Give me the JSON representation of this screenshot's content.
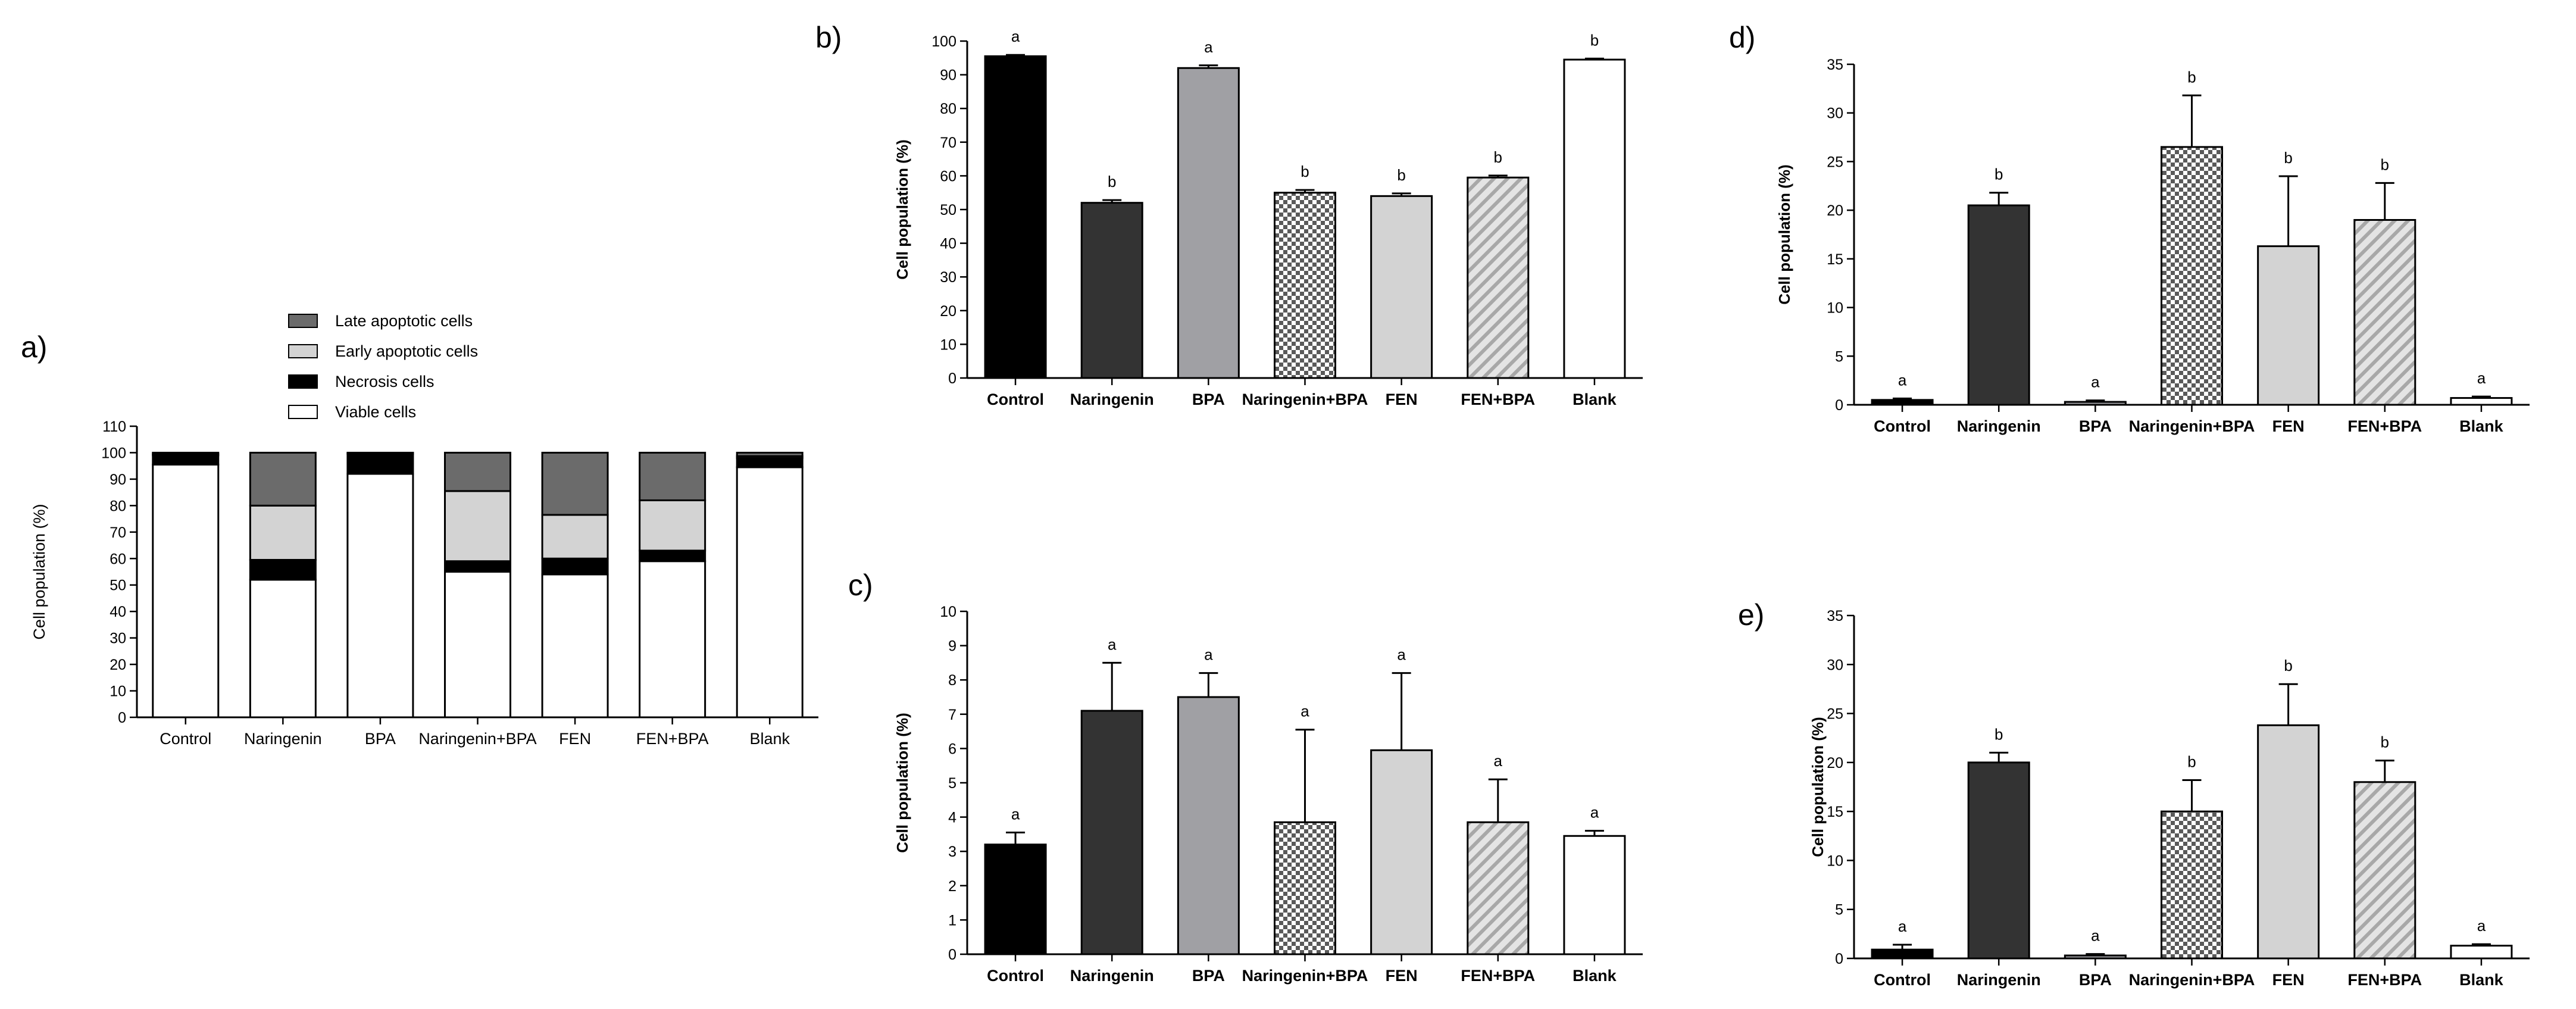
{
  "chart_data": [
    {
      "panel": "a)",
      "type": "bar",
      "stacked": true,
      "categories": [
        "Control",
        "Naringenin",
        "BPA",
        "Naringenin+BPA",
        "FEN",
        "FEN+BPA",
        "Blank"
      ],
      "series": [
        {
          "name": "Viable cells",
          "color": "#ffffff",
          "values": [
            95.5,
            52,
            92,
            55,
            54,
            59,
            94.5
          ]
        },
        {
          "name": "Necrosis cells",
          "color": "#000000",
          "values": [
            3.5,
            7.5,
            7.5,
            4,
            6,
            4,
            3.5
          ]
        },
        {
          "name": "Early apoptotic cells",
          "color": "#d3d3d3",
          "values": [
            0.5,
            20.5,
            0.3,
            26.5,
            16.5,
            19,
            0.7
          ]
        },
        {
          "name": "Late apoptotic cells",
          "color": "#6b6b6b",
          "values": [
            0.5,
            20,
            0.2,
            14.5,
            23.5,
            18,
            1.3
          ]
        }
      ],
      "legend_order": [
        "Late apoptotic cells",
        "Early apoptotic cells",
        "Necrosis cells",
        "Viable cells"
      ],
      "ylabel": "Cell population (%)",
      "ylim": [
        0,
        110
      ],
      "yticks": [
        0,
        10,
        20,
        30,
        40,
        50,
        60,
        70,
        80,
        90,
        100,
        110
      ]
    },
    {
      "panel": "b)",
      "type": "bar",
      "categories": [
        "Control",
        "Naringenin",
        "BPA",
        "Naringenin+BPA",
        "FEN",
        "FEN+BPA",
        "Blank"
      ],
      "values": [
        95.5,
        52,
        92,
        55,
        54,
        59.5,
        94.5
      ],
      "errors": [
        0.4,
        0.8,
        0.8,
        0.8,
        0.8,
        0.6,
        0.3
      ],
      "significance": [
        "a",
        "b",
        "a",
        "b",
        "b",
        "b",
        "b"
      ],
      "ylabel": "Cell population (%)",
      "ylim": [
        0,
        100
      ],
      "yticks": [
        0,
        10,
        20,
        30,
        40,
        50,
        60,
        70,
        80,
        90,
        100
      ]
    },
    {
      "panel": "c)",
      "type": "bar",
      "categories": [
        "Control",
        "Naringenin",
        "BPA",
        "Naringenin+BPA",
        "FEN",
        "FEN+BPA",
        "Blank"
      ],
      "values": [
        3.2,
        7.1,
        7.5,
        3.85,
        5.95,
        3.85,
        3.45
      ],
      "errors": [
        0.35,
        1.4,
        0.7,
        2.7,
        2.25,
        1.25,
        0.15
      ],
      "significance": [
        "a",
        "a",
        "a",
        "a",
        "a",
        "a",
        "a"
      ],
      "ylabel": "Cell population (%)",
      "ylim": [
        0,
        10
      ],
      "yticks": [
        0,
        1,
        2,
        3,
        4,
        5,
        6,
        7,
        8,
        9,
        10
      ]
    },
    {
      "panel": "d)",
      "type": "bar",
      "categories": [
        "Control",
        "Naringenin",
        "BPA",
        "Naringenin+BPA",
        "FEN",
        "FEN+BPA",
        "Blank"
      ],
      "values": [
        0.5,
        20.5,
        0.3,
        26.5,
        16.3,
        19,
        0.7
      ],
      "errors": [
        0.15,
        1.3,
        0.15,
        5.3,
        7.2,
        3.8,
        0.15
      ],
      "significance": [
        "a",
        "b",
        "a",
        "b",
        "b",
        "b",
        "a"
      ],
      "ylabel": "Cell population (%)",
      "ylim": [
        0,
        35
      ],
      "yticks": [
        0,
        5,
        10,
        15,
        20,
        25,
        30,
        35
      ]
    },
    {
      "panel": "e)",
      "type": "bar",
      "categories": [
        "Control",
        "Naringenin",
        "BPA",
        "Naringenin+BPA",
        "FEN",
        "FEN+BPA",
        "Blank"
      ],
      "values": [
        0.9,
        20,
        0.3,
        15,
        23.8,
        18,
        1.3
      ],
      "errors": [
        0.5,
        1.0,
        0.15,
        3.2,
        4.2,
        2.2,
        0.15
      ],
      "significance": [
        "a",
        "b",
        "a",
        "b",
        "b",
        "b",
        "a"
      ],
      "ylabel": "Cell population (%)",
      "ylim": [
        0,
        35
      ],
      "yticks": [
        0,
        5,
        10,
        15,
        20,
        25,
        30,
        35
      ]
    }
  ],
  "bar_colors": [
    "#000000",
    "#333333",
    "#a0a0a4",
    "checker",
    "#d3d3d3",
    "hatch",
    "#ffffff"
  ]
}
